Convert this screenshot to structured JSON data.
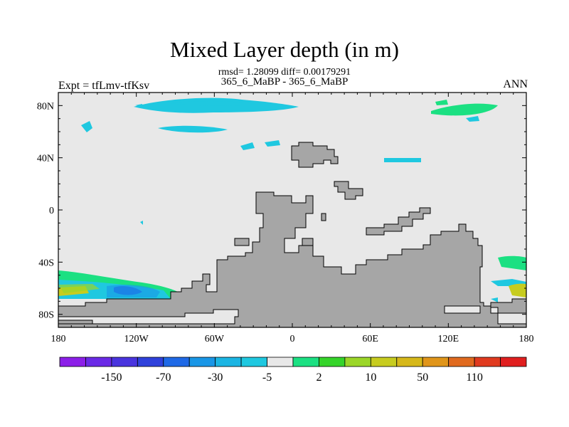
{
  "chart_data": {
    "type": "heatmap",
    "title": "Mixed Layer depth (in m)",
    "stats_line": "rmsd= 1.28099 diff= 0.00179291",
    "case_line": "365_6_MaBP - 365_6_MaBP",
    "left_string": "Expt = tfLmv-tfKsv",
    "right_string": "ANN",
    "x_range": [
      -180,
      180
    ],
    "y_range": [
      -90,
      90
    ],
    "x_ticks": [
      {
        "value": -180,
        "label": "180"
      },
      {
        "value": -120,
        "label": "120W"
      },
      {
        "value": -60,
        "label": "60W"
      },
      {
        "value": 0,
        "label": "0"
      },
      {
        "value": 60,
        "label": "60E"
      },
      {
        "value": 120,
        "label": "120E"
      },
      {
        "value": 180,
        "label": "180"
      }
    ],
    "y_ticks": [
      {
        "value": 80,
        "label": "80N"
      },
      {
        "value": 40,
        "label": "40N"
      },
      {
        "value": 0,
        "label": "0"
      },
      {
        "value": -40,
        "label": "40S"
      },
      {
        "value": -80,
        "label": "80S"
      }
    ],
    "colorbar": {
      "colors": [
        "#8c1fe8",
        "#6a2ae6",
        "#4934de",
        "#2f41db",
        "#1f69e6",
        "#1996e6",
        "#1bb5e3",
        "#1fc8e0",
        "#e8e8e8",
        "#1be082",
        "#35d42a",
        "#9bd628",
        "#c7cc1f",
        "#d6b81a",
        "#e0951a",
        "#e06a1f",
        "#e03a1f",
        "#e01f1f"
      ],
      "boundary_labels": [
        "-150",
        "-70",
        "-30",
        "-5",
        "2",
        "10",
        "50",
        "110"
      ],
      "label_slots": [
        1,
        3,
        5,
        7,
        9,
        11,
        13,
        15
      ]
    },
    "background_value": 0,
    "land_color": "#a6a6a6",
    "land_regions": [
      {
        "name": "Central Asia",
        "lon": [
          0,
          40
        ],
        "lat": [
          30,
          50
        ]
      },
      {
        "name": "Africa",
        "lon": [
          -30,
          20
        ],
        "lat": [
          -75,
          15
        ]
      },
      {
        "name": "Antarctic/Southern continent",
        "lon": [
          -120,
          180
        ],
        "lat": [
          -80,
          -55
        ]
      },
      {
        "name": "Australia block",
        "lon": [
          110,
          145
        ],
        "lat": [
          -80,
          -25
        ]
      },
      {
        "name": "South America tip",
        "lon": [
          -80,
          -65
        ],
        "lat": [
          -70,
          -50
        ]
      }
    ],
    "anomaly_regions": [
      {
        "name": "Arctic band north",
        "value": -5,
        "lon": [
          -120,
          -10
        ],
        "lat": [
          77,
          85
        ]
      },
      {
        "name": "Arctic cyan patch",
        "value": -5,
        "lon": [
          -100,
          -40
        ],
        "lat": [
          57,
          63
        ]
      },
      {
        "name": "Northeast high-lat",
        "value": 2,
        "lon": [
          110,
          170
        ],
        "lat": [
          70,
          82
        ]
      },
      {
        "name": "Southwest Pacific band",
        "value": 5,
        "lon": [
          -180,
          -110
        ],
        "lat": [
          -70,
          -45
        ]
      },
      {
        "name": "Southwest yellow core",
        "value": 50,
        "lon": [
          -180,
          -165
        ],
        "lat": [
          -67,
          -60
        ]
      },
      {
        "name": "Southwest blue core",
        "value": -30,
        "lon": [
          -140,
          -120
        ],
        "lat": [
          -68,
          -62
        ]
      },
      {
        "name": "Southeast green patch",
        "value": 10,
        "lon": [
          155,
          180
        ],
        "lat": [
          -60,
          -40
        ]
      },
      {
        "name": "Southeast yellow core",
        "value": 50,
        "lon": [
          170,
          180
        ],
        "lat": [
          -66,
          -58
        ]
      }
    ]
  }
}
